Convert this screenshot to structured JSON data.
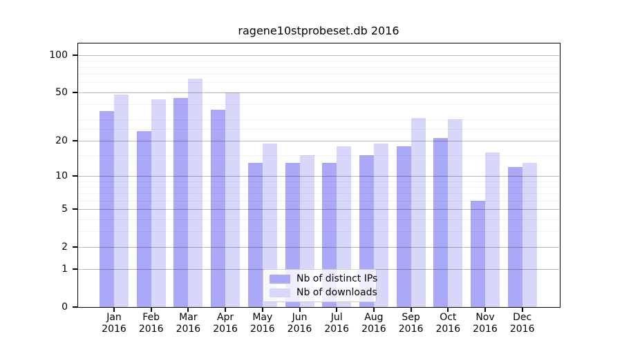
{
  "chart_data": {
    "type": "bar",
    "title": "ragene10stprobeset.db 2016",
    "categories": [
      "Jan 2016",
      "Feb 2016",
      "Mar 2016",
      "Apr 2016",
      "May 2016",
      "Jun 2016",
      "Jul 2016",
      "Aug 2016",
      "Sep 2016",
      "Oct 2016",
      "Nov 2016",
      "Dec 2016"
    ],
    "series": [
      {
        "name": "Nb of distinct IPs",
        "color": "#a9a9f7",
        "values": [
          35,
          24,
          45,
          36,
          13,
          13,
          13,
          15,
          18,
          21,
          6,
          12
        ]
      },
      {
        "name": "Nb of downloads",
        "color": "#d7d7f9",
        "values": [
          48,
          44,
          64,
          50,
          19,
          15,
          18,
          19,
          31,
          30,
          16,
          13
        ]
      }
    ],
    "xlabel": "",
    "ylabel": "",
    "yscale": "log1p",
    "ylim": [
      0,
      125
    ],
    "yticks": [
      0,
      1,
      2,
      5,
      10,
      20,
      50,
      100
    ],
    "minor_gridlines": [
      3,
      4,
      6,
      7,
      8,
      9,
      15,
      25,
      30,
      40,
      60,
      70,
      80,
      90
    ],
    "grid": true,
    "legend_position": "lower center",
    "axis_color": "#000000",
    "major_grid_color": "#b0b0b0",
    "background_color": "#ffffff"
  }
}
